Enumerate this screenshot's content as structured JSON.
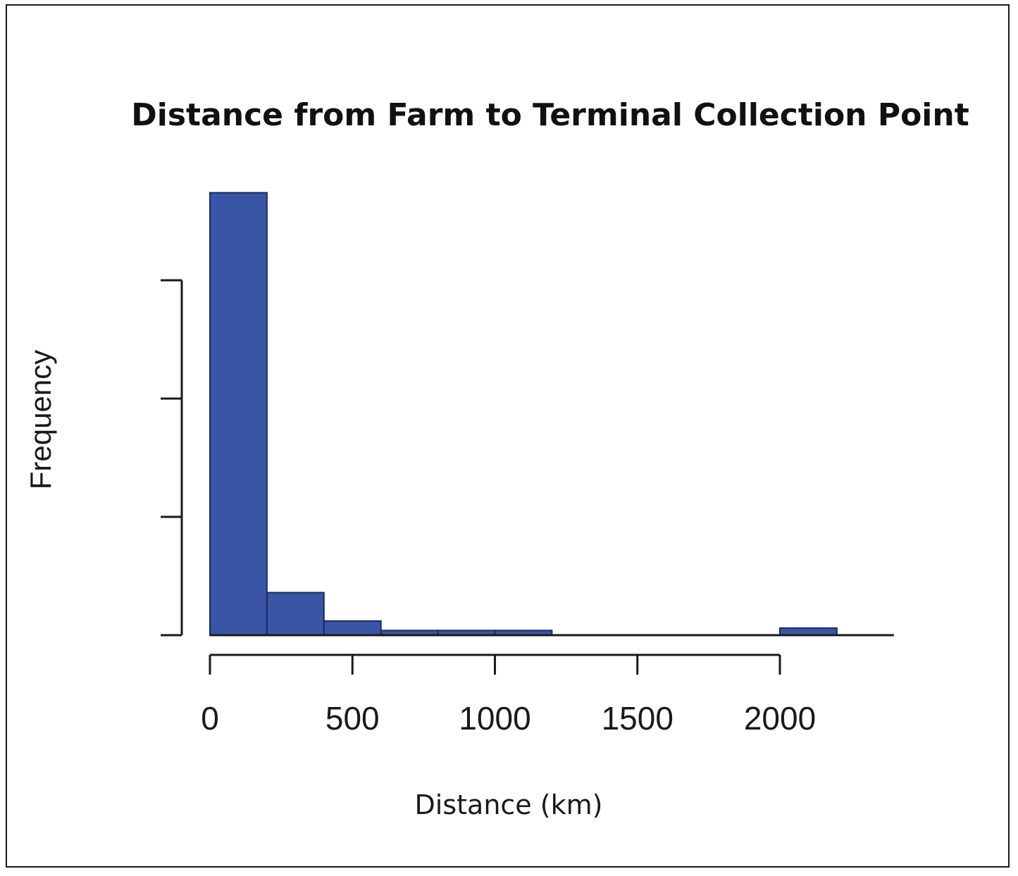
{
  "colors": {
    "bar_fill": "#3a54a6",
    "bar_stroke": "#1c2a66",
    "axis": "#1a1a1a"
  },
  "chart_data": {
    "type": "bar",
    "title": "Distance from Farm to Terminal Collection Point",
    "xlabel": "Distance (km)",
    "ylabel": "Frequency",
    "xlim": [
      0,
      2400
    ],
    "ylim": [
      0,
      187
    ],
    "x_ticks": [
      0,
      500,
      1000,
      1500,
      2000
    ],
    "y_tick_values": [
      0,
      50,
      100,
      150
    ],
    "y_tick_labels_visible": false,
    "grid": false,
    "bins": [
      {
        "start": 0,
        "end": 200,
        "count": 187
      },
      {
        "start": 200,
        "end": 400,
        "count": 18
      },
      {
        "start": 400,
        "end": 600,
        "count": 6
      },
      {
        "start": 600,
        "end": 800,
        "count": 2
      },
      {
        "start": 800,
        "end": 1000,
        "count": 2
      },
      {
        "start": 1000,
        "end": 1200,
        "count": 2
      },
      {
        "start": 1200,
        "end": 1400,
        "count": 0
      },
      {
        "start": 1400,
        "end": 1600,
        "count": 0
      },
      {
        "start": 1600,
        "end": 1800,
        "count": 0
      },
      {
        "start": 1800,
        "end": 2000,
        "count": 0
      },
      {
        "start": 2000,
        "end": 2200,
        "count": 3
      }
    ]
  }
}
